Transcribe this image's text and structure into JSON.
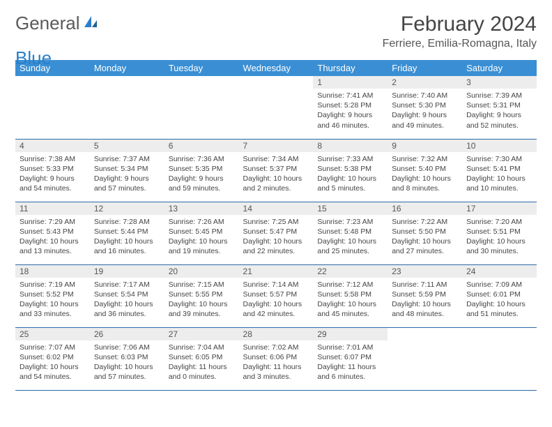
{
  "logo": {
    "text1": "General",
    "text2": "Blue"
  },
  "title": "February 2024",
  "location": "Ferriere, Emilia-Romagna, Italy",
  "weekdays": [
    "Sunday",
    "Monday",
    "Tuesday",
    "Wednesday",
    "Thursday",
    "Friday",
    "Saturday"
  ],
  "colors": {
    "header_bg": "#3a8fd4",
    "header_text": "#ffffff",
    "daynum_bg": "#ededed",
    "row_border": "#2a6aa8",
    "logo_gray": "#5a5a5a",
    "logo_blue": "#2a7fc9"
  },
  "weeks": [
    [
      null,
      null,
      null,
      null,
      {
        "n": "1",
        "sr": "7:41 AM",
        "ss": "5:28 PM",
        "dl": "9 hours and 46 minutes."
      },
      {
        "n": "2",
        "sr": "7:40 AM",
        "ss": "5:30 PM",
        "dl": "9 hours and 49 minutes."
      },
      {
        "n": "3",
        "sr": "7:39 AM",
        "ss": "5:31 PM",
        "dl": "9 hours and 52 minutes."
      }
    ],
    [
      {
        "n": "4",
        "sr": "7:38 AM",
        "ss": "5:33 PM",
        "dl": "9 hours and 54 minutes."
      },
      {
        "n": "5",
        "sr": "7:37 AM",
        "ss": "5:34 PM",
        "dl": "9 hours and 57 minutes."
      },
      {
        "n": "6",
        "sr": "7:36 AM",
        "ss": "5:35 PM",
        "dl": "9 hours and 59 minutes."
      },
      {
        "n": "7",
        "sr": "7:34 AM",
        "ss": "5:37 PM",
        "dl": "10 hours and 2 minutes."
      },
      {
        "n": "8",
        "sr": "7:33 AM",
        "ss": "5:38 PM",
        "dl": "10 hours and 5 minutes."
      },
      {
        "n": "9",
        "sr": "7:32 AM",
        "ss": "5:40 PM",
        "dl": "10 hours and 8 minutes."
      },
      {
        "n": "10",
        "sr": "7:30 AM",
        "ss": "5:41 PM",
        "dl": "10 hours and 10 minutes."
      }
    ],
    [
      {
        "n": "11",
        "sr": "7:29 AM",
        "ss": "5:43 PM",
        "dl": "10 hours and 13 minutes."
      },
      {
        "n": "12",
        "sr": "7:28 AM",
        "ss": "5:44 PM",
        "dl": "10 hours and 16 minutes."
      },
      {
        "n": "13",
        "sr": "7:26 AM",
        "ss": "5:45 PM",
        "dl": "10 hours and 19 minutes."
      },
      {
        "n": "14",
        "sr": "7:25 AM",
        "ss": "5:47 PM",
        "dl": "10 hours and 22 minutes."
      },
      {
        "n": "15",
        "sr": "7:23 AM",
        "ss": "5:48 PM",
        "dl": "10 hours and 25 minutes."
      },
      {
        "n": "16",
        "sr": "7:22 AM",
        "ss": "5:50 PM",
        "dl": "10 hours and 27 minutes."
      },
      {
        "n": "17",
        "sr": "7:20 AM",
        "ss": "5:51 PM",
        "dl": "10 hours and 30 minutes."
      }
    ],
    [
      {
        "n": "18",
        "sr": "7:19 AM",
        "ss": "5:52 PM",
        "dl": "10 hours and 33 minutes."
      },
      {
        "n": "19",
        "sr": "7:17 AM",
        "ss": "5:54 PM",
        "dl": "10 hours and 36 minutes."
      },
      {
        "n": "20",
        "sr": "7:15 AM",
        "ss": "5:55 PM",
        "dl": "10 hours and 39 minutes."
      },
      {
        "n": "21",
        "sr": "7:14 AM",
        "ss": "5:57 PM",
        "dl": "10 hours and 42 minutes."
      },
      {
        "n": "22",
        "sr": "7:12 AM",
        "ss": "5:58 PM",
        "dl": "10 hours and 45 minutes."
      },
      {
        "n": "23",
        "sr": "7:11 AM",
        "ss": "5:59 PM",
        "dl": "10 hours and 48 minutes."
      },
      {
        "n": "24",
        "sr": "7:09 AM",
        "ss": "6:01 PM",
        "dl": "10 hours and 51 minutes."
      }
    ],
    [
      {
        "n": "25",
        "sr": "7:07 AM",
        "ss": "6:02 PM",
        "dl": "10 hours and 54 minutes."
      },
      {
        "n": "26",
        "sr": "7:06 AM",
        "ss": "6:03 PM",
        "dl": "10 hours and 57 minutes."
      },
      {
        "n": "27",
        "sr": "7:04 AM",
        "ss": "6:05 PM",
        "dl": "11 hours and 0 minutes."
      },
      {
        "n": "28",
        "sr": "7:02 AM",
        "ss": "6:06 PM",
        "dl": "11 hours and 3 minutes."
      },
      {
        "n": "29",
        "sr": "7:01 AM",
        "ss": "6:07 PM",
        "dl": "11 hours and 6 minutes."
      },
      null,
      null
    ]
  ],
  "labels": {
    "sunrise": "Sunrise: ",
    "sunset": "Sunset: ",
    "daylight": "Daylight: "
  }
}
